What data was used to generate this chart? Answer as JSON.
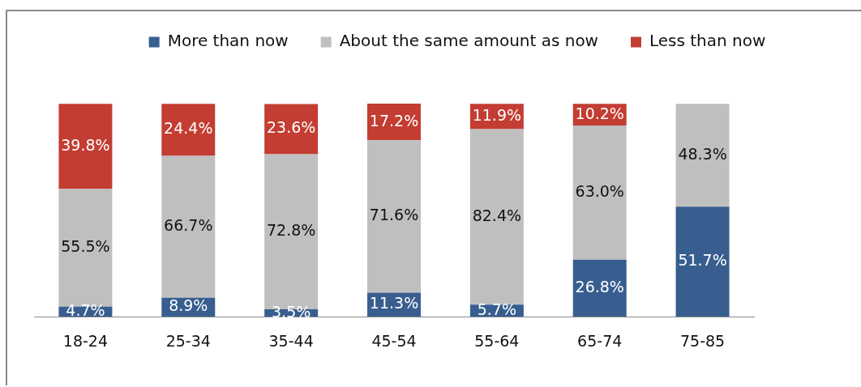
{
  "chart_data": {
    "type": "bar",
    "stacked": true,
    "legend": "top",
    "categories": [
      "18-24",
      "25-34",
      "35-44",
      "45-54",
      "55-64",
      "65-74",
      "75-85"
    ],
    "series": [
      {
        "name": "More than now",
        "color": "#385e8f",
        "values": [
          4.7,
          8.9,
          3.5,
          11.3,
          5.7,
          26.8,
          51.7
        ],
        "value_labels": [
          "4.7%",
          "8.9%",
          "3.5%",
          "11.3%",
          "5.7%",
          "26.8%",
          "51.7%"
        ]
      },
      {
        "name": "About the same amount as now",
        "color": "#bfbfbf",
        "values": [
          55.5,
          66.7,
          72.8,
          71.6,
          82.4,
          63.0,
          48.3
        ],
        "value_labels": [
          "55.5%",
          "66.7%",
          "72.8%",
          "71.6%",
          "82.4%",
          "63.0%",
          "48.3%"
        ]
      },
      {
        "name": "Less than now",
        "color": "#c33d32",
        "values": [
          39.8,
          24.4,
          23.6,
          17.2,
          11.9,
          10.2,
          null
        ],
        "value_labels": [
          "39.8%",
          "24.4%",
          "23.6%",
          "17.2%",
          "11.9%",
          "10.2%",
          null
        ]
      }
    ]
  }
}
